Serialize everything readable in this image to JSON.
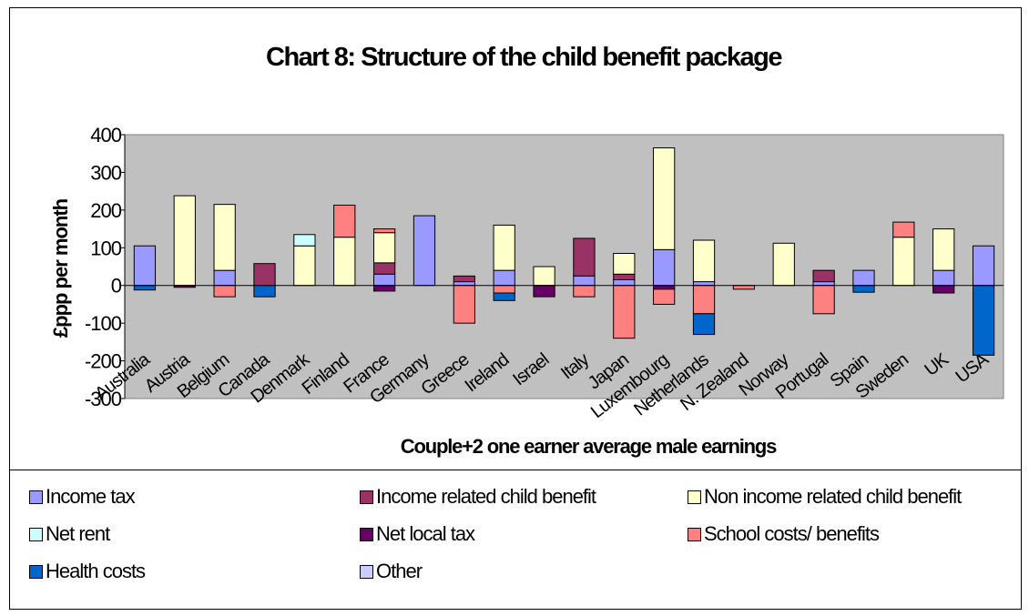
{
  "chart_data": {
    "type": "bar",
    "stacked": true,
    "title": "Chart 8: Structure of the child benefit package",
    "xlabel": "Couple+2 one earner average male earnings",
    "ylabel": "£ppp per month",
    "ylim": [
      -300,
      400
    ],
    "yticks": [
      -300,
      -200,
      -100,
      0,
      100,
      200,
      300,
      400
    ],
    "grid": false,
    "legend_position": "bottom",
    "categories": [
      "Australia",
      "Austria",
      "Belgium",
      "Canada",
      "Denmark",
      "Finland",
      "France",
      "Germany",
      "Greece",
      "Ireland",
      "Israel",
      "Italy",
      "Japan",
      "Luxembourg",
      "Netherlands",
      "N. Zealand",
      "Norway",
      "Portugal",
      "Spain",
      "Sweden",
      "UK",
      "USA"
    ],
    "series": [
      {
        "name": "Income tax",
        "color": "#9999ff",
        "values": [
          105,
          0,
          40,
          0,
          0,
          0,
          30,
          185,
          10,
          40,
          0,
          25,
          15,
          95,
          10,
          0,
          0,
          10,
          40,
          0,
          40,
          105
        ]
      },
      {
        "name": "Income related child benefit",
        "color": "#993366",
        "values": [
          0,
          0,
          0,
          58,
          0,
          0,
          30,
          0,
          15,
          0,
          0,
          100,
          15,
          0,
          0,
          0,
          0,
          30,
          0,
          0,
          0,
          0
        ]
      },
      {
        "name": "Non income related child benefit",
        "color": "#ffffcc",
        "values": [
          0,
          238,
          175,
          0,
          105,
          128,
          80,
          0,
          0,
          120,
          50,
          0,
          55,
          270,
          110,
          0,
          112,
          0,
          0,
          128,
          110,
          0
        ]
      },
      {
        "name": "Net rent",
        "color": "#ccffff",
        "values": [
          0,
          0,
          0,
          0,
          30,
          0,
          0,
          0,
          0,
          0,
          0,
          0,
          0,
          0,
          0,
          0,
          0,
          0,
          0,
          0,
          0,
          0
        ]
      },
      {
        "name": "Net local tax",
        "color": "#660066",
        "values": [
          0,
          -5,
          0,
          0,
          0,
          0,
          -15,
          0,
          0,
          0,
          -30,
          0,
          0,
          -10,
          0,
          0,
          0,
          0,
          0,
          0,
          -20,
          0
        ]
      },
      {
        "name": "School costs/ benefits",
        "color": "#ff8080",
        "values": [
          0,
          0,
          -30,
          0,
          0,
          85,
          10,
          0,
          -100,
          -20,
          0,
          -30,
          -140,
          -40,
          -75,
          -10,
          0,
          -75,
          0,
          40,
          0,
          0
        ]
      },
      {
        "name": "Health costs",
        "color": "#0066cc",
        "values": [
          -12,
          0,
          0,
          -30,
          0,
          0,
          0,
          0,
          0,
          -20,
          0,
          0,
          0,
          0,
          -55,
          0,
          0,
          0,
          -18,
          0,
          0,
          -185
        ]
      },
      {
        "name": "Other",
        "color": "#ccccff",
        "values": [
          0,
          0,
          0,
          0,
          0,
          0,
          0,
          0,
          0,
          0,
          0,
          0,
          0,
          0,
          0,
          0,
          0,
          0,
          0,
          0,
          0,
          0
        ]
      }
    ]
  }
}
